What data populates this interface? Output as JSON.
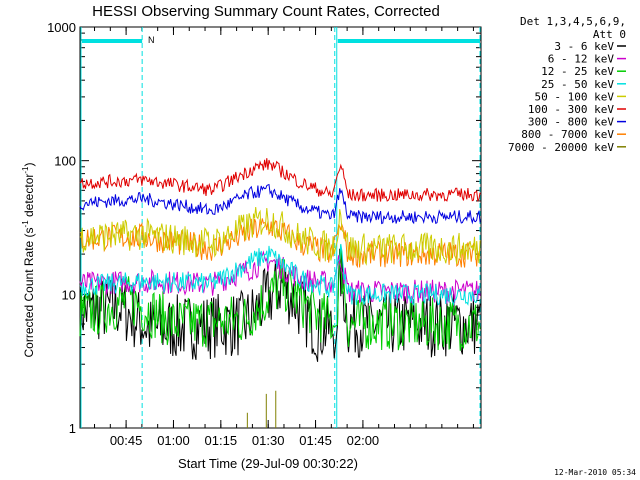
{
  "chart_data": {
    "type": "line",
    "title": "HESSI Observing Summary Count Rates, Corrected",
    "ylabel_parts": [
      "Corrected Count Rate (s",
      "-1",
      " detector",
      "-1",
      ")"
    ],
    "xlabel": "Start Time (29-Jul-09 00:30:22)",
    "y_scale": "log",
    "ylim": [
      1,
      1000
    ],
    "y_ticks": [
      {
        "v": 1,
        "label": "1"
      },
      {
        "v": 10,
        "label": "10"
      },
      {
        "v": 100,
        "label": "100"
      },
      {
        "v": 1000,
        "label": "1000"
      }
    ],
    "xlim": [
      0,
      127
    ],
    "x_ticks": [
      {
        "t": 14.6,
        "label": "00:45"
      },
      {
        "t": 29.6,
        "label": "01:00"
      },
      {
        "t": 44.6,
        "label": "01:15"
      },
      {
        "t": 59.6,
        "label": "01:30"
      },
      {
        "t": 74.6,
        "label": "01:45"
      },
      {
        "t": 89.6,
        "label": "02:00"
      }
    ],
    "legend_header": [
      "Det 1,3,4,5,6,9,",
      "Att 0"
    ],
    "legend_placement": "right",
    "series": [
      {
        "name": "3 - 6 keV",
        "color": "#000000",
        "values": [
          [
            0,
            7.5
          ],
          [
            13,
            8
          ],
          [
            22,
            5.5
          ],
          [
            52,
            6
          ],
          [
            64,
            12
          ],
          [
            75,
            5.5
          ],
          [
            81,
            5.5
          ],
          [
            82.5,
            15
          ],
          [
            85,
            6
          ],
          [
            127,
            6
          ]
        ]
      },
      {
        "name": "6 - 12 keV",
        "color": "#cc00cc",
        "values": [
          [
            0,
            12
          ],
          [
            20,
            12.5
          ],
          [
            42,
            12
          ],
          [
            55,
            16
          ],
          [
            60,
            18
          ],
          [
            70,
            13
          ],
          [
            80,
            12
          ],
          [
            82.5,
            19
          ],
          [
            85,
            10.5
          ],
          [
            127,
            10.5
          ]
        ]
      },
      {
        "name": "12 - 25 keV",
        "color": "#00cc00",
        "values": [
          [
            0,
            7
          ],
          [
            16,
            9
          ],
          [
            30,
            6
          ],
          [
            52,
            6.5
          ],
          [
            64,
            12
          ],
          [
            75,
            7
          ],
          [
            81,
            6
          ],
          [
            82.5,
            18
          ],
          [
            85,
            6
          ],
          [
            127,
            6
          ]
        ]
      },
      {
        "name": "25 - 50 keV",
        "color": "#00e0e0",
        "values": [
          [
            0,
            11.5
          ],
          [
            20,
            12.5
          ],
          [
            42,
            12
          ],
          [
            55,
            18
          ],
          [
            60,
            20
          ],
          [
            70,
            13
          ],
          [
            80,
            11
          ],
          [
            82.5,
            22
          ],
          [
            85,
            10
          ],
          [
            127,
            10
          ]
        ]
      },
      {
        "name": "50 - 100 keV",
        "color": "#cccc00",
        "values": [
          [
            0,
            27
          ],
          [
            20,
            28
          ],
          [
            42,
            24
          ],
          [
            55,
            34
          ],
          [
            60,
            37
          ],
          [
            70,
            26
          ],
          [
            80,
            22
          ],
          [
            82.5,
            42
          ],
          [
            85,
            22
          ],
          [
            127,
            22
          ]
        ]
      },
      {
        "name": "100 - 300 keV",
        "color": "#e00000",
        "values": [
          [
            0,
            68
          ],
          [
            20,
            72
          ],
          [
            42,
            60
          ],
          [
            55,
            88
          ],
          [
            60,
            95
          ],
          [
            70,
            68
          ],
          [
            80,
            55
          ],
          [
            82.5,
            95
          ],
          [
            85,
            55
          ],
          [
            127,
            56
          ]
        ]
      },
      {
        "name": "300 - 800 keV",
        "color": "#0000e0",
        "values": [
          [
            0,
            48
          ],
          [
            20,
            52
          ],
          [
            42,
            42
          ],
          [
            55,
            58
          ],
          [
            60,
            60
          ],
          [
            70,
            45
          ],
          [
            80,
            38
          ],
          [
            82.5,
            60
          ],
          [
            85,
            38
          ],
          [
            127,
            38
          ]
        ]
      },
      {
        "name": "800 - 7000 keV",
        "color": "#ff8000",
        "values": [
          [
            0,
            26
          ],
          [
            20,
            27
          ],
          [
            42,
            22
          ],
          [
            55,
            30
          ],
          [
            60,
            33
          ],
          [
            70,
            24
          ],
          [
            80,
            20
          ],
          [
            82.5,
            34
          ],
          [
            85,
            20
          ],
          [
            127,
            20
          ]
        ]
      },
      {
        "name": "7000 - 20000 keV",
        "color": "#808000",
        "values": [
          [
            0,
            1
          ],
          [
            127,
            1
          ]
        ]
      }
    ],
    "annotations": [
      {
        "text": "N",
        "t": 22.5
      }
    ],
    "vertical_markers": {
      "solid": [
        0,
        81
      ],
      "dashed": [
        20,
        81,
        127
      ]
    },
    "bars": [
      {
        "t0": 0,
        "t1": 20
      },
      {
        "t0": 81,
        "t1": 127
      }
    ],
    "spikes": [
      {
        "t": 59,
        "v": 1.8
      },
      {
        "t": 62,
        "v": 1.9
      },
      {
        "t": 53,
        "v": 1.3
      }
    ]
  },
  "footer": {
    "date": "12-Mar-2010 05:34"
  }
}
